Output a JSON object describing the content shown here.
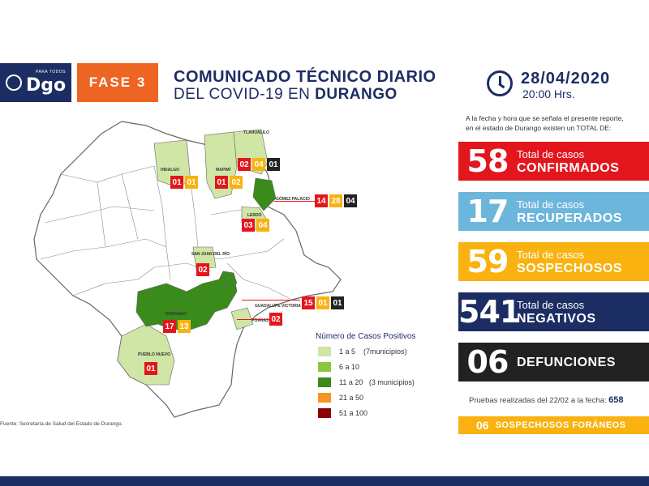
{
  "header": {
    "logo_small": "PARA TODOS",
    "logo_main": "Dgo",
    "fase": "FASE 3",
    "title_line1": "COMUNICADO TÉCNICO DIARIO",
    "title_line2_prefix": "DEL COVID-19 EN",
    "title_line2_bold": "DURANGO",
    "date": "28/04/2020",
    "time": "20:00 Hrs.",
    "clock_icon": "clock-icon"
  },
  "intro": {
    "line1": "A la fecha y hora que se señala el presente reporte,",
    "line2": "en el estado de Durango existen un TOTAL DE:"
  },
  "stats": [
    {
      "number": "58",
      "label1": "Total de casos",
      "label2": "CONFIRMADOS",
      "color": "#e3161d"
    },
    {
      "number": "17",
      "label1": "Total de casos",
      "label2": "RECUPERADOS",
      "color": "#6cb6dc"
    },
    {
      "number": "59",
      "label1": "Total de casos",
      "label2": "SOSPECHOSOS",
      "color": "#f9b20f"
    },
    {
      "number": "541",
      "label1": "Total de casos",
      "label2": "NEGATIVOS",
      "color": "#1c2d63"
    },
    {
      "number": "06",
      "label1": "",
      "label2": "DEFUNCIONES",
      "color": "#222222"
    }
  ],
  "pruebas": {
    "label": "Pruebas realizadas del 22/02 a la fecha:",
    "value": "658"
  },
  "foraneos": {
    "number": "06",
    "label": "SOSPECHOSOS FORÁNEOS"
  },
  "map": {
    "municipios": [
      {
        "name": "TLAHUALILO",
        "counts": [
          "02",
          "04",
          "01"
        ]
      },
      {
        "name": "HIDALGO",
        "counts": [
          "01",
          "01"
        ]
      },
      {
        "name": "MAPIMÍ",
        "counts": [
          "01",
          "02"
        ]
      },
      {
        "name": "GÓMEZ PALACIO",
        "counts": [
          "14",
          "28",
          "04"
        ]
      },
      {
        "name": "LERDO",
        "counts": [
          "03",
          "04"
        ]
      },
      {
        "name": "SAN JUAN DEL RÍO",
        "counts": [
          "02"
        ]
      },
      {
        "name": "GUADALUPE VICTORIA",
        "counts": [
          "15",
          "01",
          "01"
        ]
      },
      {
        "name": "DURANGO",
        "counts": [
          "17",
          "13"
        ]
      },
      {
        "name": "POANAS",
        "counts": [
          "02"
        ]
      },
      {
        "name": "PUEBLO NUEVO",
        "counts": [
          "01"
        ]
      }
    ]
  },
  "legend": {
    "title": "Número de Casos Positivos",
    "items": [
      {
        "label": "1 a 5    (7municipios)",
        "color": "#cfe6a6"
      },
      {
        "label": "6 a 10",
        "color": "#8cc63f"
      },
      {
        "label": "11 a 20   (3 municipios)",
        "color": "#3b8a1c"
      },
      {
        "label": "21 a 50",
        "color": "#f7941d"
      },
      {
        "label": "51 a 100",
        "color": "#8b0000"
      }
    ]
  },
  "source": "Fuente: Secretaría de Salud del Estado de Durango."
}
